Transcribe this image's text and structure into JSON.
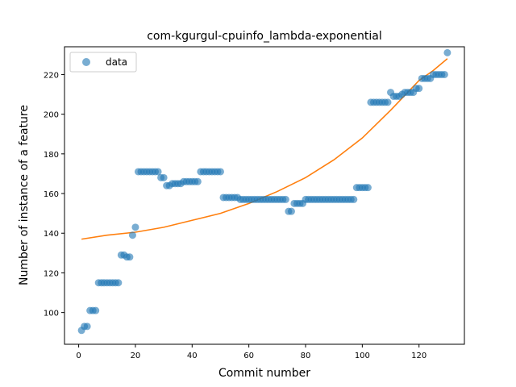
{
  "chart_data": {
    "type": "scatter",
    "title": "com-kgurgul-cpuinfo_lambda-exponential",
    "xlabel": "Commit number",
    "ylabel": "Number of instance of a feature",
    "xlim": [
      -5,
      136
    ],
    "ylim": [
      84,
      234
    ],
    "xticks": [
      0,
      20,
      40,
      60,
      80,
      100,
      120
    ],
    "yticks": [
      100,
      120,
      140,
      160,
      180,
      200,
      220
    ],
    "grid": false,
    "legend": {
      "placement": "top-left",
      "entries": [
        "data"
      ]
    },
    "colors": {
      "data": "#1f77b4",
      "fit": "#ff7f0e"
    },
    "series": [
      {
        "name": "data",
        "kind": "scatter",
        "x": [
          1,
          2,
          3,
          4,
          5,
          6,
          7,
          8,
          9,
          10,
          11,
          12,
          13,
          14,
          15,
          16,
          17,
          18,
          19,
          20,
          21,
          22,
          23,
          24,
          25,
          26,
          27,
          28,
          29,
          30,
          31,
          32,
          33,
          34,
          35,
          36,
          37,
          38,
          39,
          40,
          41,
          42,
          43,
          44,
          45,
          46,
          47,
          48,
          49,
          50,
          51,
          52,
          53,
          54,
          55,
          56,
          57,
          58,
          59,
          60,
          61,
          62,
          63,
          64,
          65,
          66,
          67,
          68,
          69,
          70,
          71,
          72,
          73,
          74,
          75,
          76,
          77,
          78,
          79,
          80,
          81,
          82,
          83,
          84,
          85,
          86,
          87,
          88,
          89,
          90,
          91,
          92,
          93,
          94,
          95,
          96,
          97,
          98,
          99,
          100,
          101,
          102,
          103,
          104,
          105,
          106,
          107,
          108,
          109,
          110,
          111,
          112,
          113,
          114,
          115,
          116,
          117,
          118,
          119,
          120,
          121,
          122,
          123,
          124,
          125,
          126,
          127,
          128,
          129,
          130
        ],
        "y": [
          91,
          93,
          93,
          101,
          101,
          101,
          115,
          115,
          115,
          115,
          115,
          115,
          115,
          115,
          129,
          129,
          128,
          128,
          139,
          143,
          171,
          171,
          171,
          171,
          171,
          171,
          171,
          171,
          168,
          168,
          164,
          164,
          165,
          165,
          165,
          165,
          166,
          166,
          166,
          166,
          166,
          166,
          171,
          171,
          171,
          171,
          171,
          171,
          171,
          171,
          158,
          158,
          158,
          158,
          158,
          158,
          157,
          157,
          157,
          157,
          157,
          157,
          157,
          157,
          157,
          157,
          157,
          157,
          157,
          157,
          157,
          157,
          157,
          151,
          151,
          155,
          155,
          155,
          155,
          157,
          157,
          157,
          157,
          157,
          157,
          157,
          157,
          157,
          157,
          157,
          157,
          157,
          157,
          157,
          157,
          157,
          157,
          163,
          163,
          163,
          163,
          163,
          206,
          206,
          206,
          206,
          206,
          206,
          206,
          211,
          209,
          209,
          209,
          210,
          211,
          211,
          211,
          211,
          213,
          213,
          218,
          218,
          218,
          218,
          220,
          220,
          220,
          220,
          220,
          231
        ]
      },
      {
        "name": "",
        "kind": "line",
        "x": [
          1,
          10,
          20,
          30,
          40,
          50,
          60,
          70,
          80,
          90,
          100,
          110,
          120,
          125,
          130
        ],
        "y": [
          137,
          139,
          140.5,
          143,
          146.5,
          150,
          155,
          161,
          168,
          177,
          188,
          202,
          217,
          222,
          228
        ]
      }
    ]
  }
}
